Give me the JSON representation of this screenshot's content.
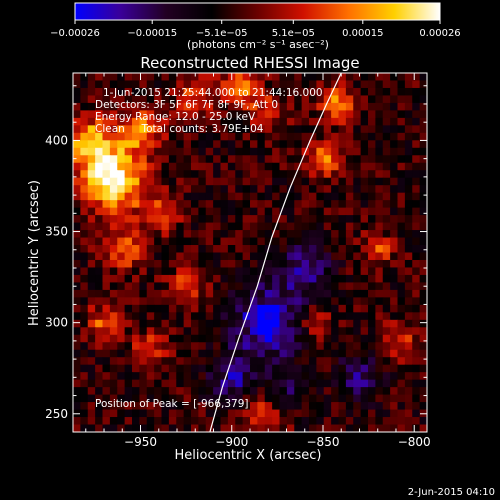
{
  "chart_data": {
    "type": "heatmap",
    "title": "Reconstructed RHESSI Image",
    "xlabel": "Heliocentric X (arcsec)",
    "ylabel": "Heliocentric Y (arcsec)",
    "xlim": [
      -987,
      -793
    ],
    "ylim": [
      240,
      437
    ],
    "xticks": [
      -950,
      -900,
      -850,
      -800
    ],
    "xtick_labels": [
      "−950",
      "−900",
      "−850",
      "−800"
    ],
    "yticks": [
      250,
      300,
      350,
      400
    ],
    "ytick_labels": [
      "250",
      "300",
      "350",
      "400"
    ],
    "colorbar": {
      "range": [
        -0.00026,
        0.00026
      ],
      "ticks": [
        -0.00026,
        -0.00015,
        -5.1e-05,
        5.1e-05,
        0.00015,
        0.00026
      ],
      "tick_labels": [
        "−0.00026",
        "−0.00015",
        "−5.1e−05",
        "5.1e−05",
        "0.00015",
        "0.00026"
      ],
      "units": "(photons cm⁻² s⁻¹ asec⁻²)",
      "colormap": [
        "#0000ff",
        "#3a0099",
        "#220022",
        "#000000",
        "#6a0000",
        "#d01000",
        "#ff7000",
        "#ffd000",
        "#ffffff"
      ]
    },
    "annotations": [
      "1-Jun-2015 21:25:44.000 to 21:44:16.000",
      "Detectors: 3F 5F 6F 7F 8F 9F, Att 0",
      "Energy Range: 12.0 - 25.0 keV",
      "Clean     Total counts: 3.79E+04"
    ],
    "peak_label": "Position of Peak = [-966,379]",
    "peak": {
      "x": -966,
      "y": 379
    },
    "limb_curve": [
      {
        "x": -912,
        "y": 240
      },
      {
        "x": -905,
        "y": 265
      },
      {
        "x": -896,
        "y": 292
      },
      {
        "x": -886,
        "y": 320
      },
      {
        "x": -878,
        "y": 347
      },
      {
        "x": -868,
        "y": 374
      },
      {
        "x": -857,
        "y": 400
      },
      {
        "x": -848,
        "y": 420
      },
      {
        "x": -840,
        "y": 437
      }
    ],
    "hot_regions": [
      {
        "x": -966,
        "y": 379,
        "sigma": 12,
        "amplitude": 1.0
      },
      {
        "x": -978,
        "y": 400,
        "sigma": 9,
        "amplitude": 0.65
      },
      {
        "x": -950,
        "y": 405,
        "sigma": 9,
        "amplitude": 0.55
      },
      {
        "x": -940,
        "y": 360,
        "sigma": 8,
        "amplitude": 0.45
      },
      {
        "x": -960,
        "y": 340,
        "sigma": 8,
        "amplitude": 0.5
      },
      {
        "x": -970,
        "y": 300,
        "sigma": 7,
        "amplitude": 0.45
      },
      {
        "x": -945,
        "y": 285,
        "sigma": 7,
        "amplitude": 0.4
      },
      {
        "x": -925,
        "y": 320,
        "sigma": 7,
        "amplitude": 0.4
      },
      {
        "x": -920,
        "y": 425,
        "sigma": 8,
        "amplitude": 0.45
      },
      {
        "x": -895,
        "y": 430,
        "sigma": 8,
        "amplitude": 0.5
      },
      {
        "x": -880,
        "y": 415,
        "sigma": 7,
        "amplitude": 0.4
      },
      {
        "x": -850,
        "y": 390,
        "sigma": 7,
        "amplitude": 0.55
      },
      {
        "x": -842,
        "y": 420,
        "sigma": 7,
        "amplitude": 0.55
      },
      {
        "x": -820,
        "y": 340,
        "sigma": 7,
        "amplitude": 0.4
      },
      {
        "x": -808,
        "y": 290,
        "sigma": 7,
        "amplitude": 0.4
      },
      {
        "x": -880,
        "y": 250,
        "sigma": 8,
        "amplitude": 0.45
      },
      {
        "x": -855,
        "y": 300,
        "sigma": 7,
        "amplitude": 0.35
      }
    ],
    "cold_regions": [
      {
        "x": -880,
        "y": 300,
        "sigma": 14,
        "amplitude": 0.9
      },
      {
        "x": -860,
        "y": 330,
        "sigma": 10,
        "amplitude": 0.6
      },
      {
        "x": -900,
        "y": 270,
        "sigma": 9,
        "amplitude": 0.6
      },
      {
        "x": -830,
        "y": 270,
        "sigma": 9,
        "amplitude": 0.55
      },
      {
        "x": -870,
        "y": 260,
        "sigma": 8,
        "amplitude": 0.45
      }
    ],
    "grid": false,
    "legend": "none"
  },
  "footer": {
    "date": "2-Jun-2015 04:10"
  }
}
